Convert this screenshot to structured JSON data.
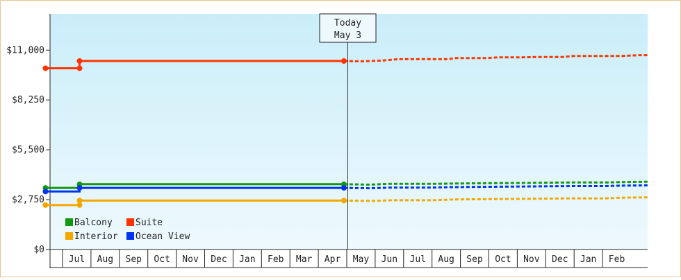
{
  "chart_data": {
    "type": "line",
    "y_ticks": [
      "$0",
      "$2,750",
      "$5,500",
      "$8,250",
      "$11,000"
    ],
    "y_tick_values": [
      0,
      2750,
      5500,
      8250,
      11000
    ],
    "ylim": [
      0,
      13000
    ],
    "x_months": [
      "Jul",
      "Aug",
      "Sep",
      "Oct",
      "Nov",
      "Dec",
      "Jan",
      "Feb",
      "Mar",
      "Apr",
      "May",
      "Jun",
      "Jul",
      "Aug",
      "Sep",
      "Oct",
      "Nov",
      "Dec",
      "Jan",
      "Feb"
    ],
    "today": {
      "title": "Today",
      "date": "May 3"
    },
    "legend": [
      {
        "name": "Balcony",
        "color": "#119911"
      },
      {
        "name": "Suite",
        "color": "#ff3300"
      },
      {
        "name": "Interior",
        "color": "#f5a700"
      },
      {
        "name": "Ocean View",
        "color": "#0033ee"
      }
    ],
    "series": [
      {
        "name": "Suite",
        "color": "#ff3300",
        "history": [
          [
            -1.1,
            10000
          ],
          [
            0.1,
            10000
          ],
          [
            0.1,
            10400
          ],
          [
            9.4,
            10400
          ]
        ],
        "forecast": [
          [
            9.4,
            10400
          ],
          [
            10.0,
            10380
          ],
          [
            10.7,
            10420
          ],
          [
            11.3,
            10500
          ],
          [
            12.2,
            10500
          ],
          [
            13.1,
            10500
          ],
          [
            13.3,
            10560
          ],
          [
            14.4,
            10560
          ],
          [
            14.8,
            10600
          ],
          [
            15.6,
            10600
          ],
          [
            16.3,
            10620
          ],
          [
            17.1,
            10620
          ],
          [
            17.5,
            10680
          ],
          [
            19.2,
            10680
          ],
          [
            19.8,
            10720
          ],
          [
            20.1,
            10720
          ]
        ]
      },
      {
        "name": "Balcony",
        "color": "#119911",
        "history": [
          [
            -1.1,
            3400
          ],
          [
            0.1,
            3400
          ],
          [
            0.1,
            3600
          ],
          [
            9.4,
            3600
          ]
        ],
        "forecast": [
          [
            9.4,
            3600
          ],
          [
            10.3,
            3580
          ],
          [
            11.0,
            3620
          ],
          [
            12.5,
            3620
          ],
          [
            13.3,
            3640
          ],
          [
            14.5,
            3660
          ],
          [
            16.1,
            3680
          ],
          [
            17.5,
            3700
          ],
          [
            18.7,
            3700
          ],
          [
            19.2,
            3720
          ],
          [
            20.1,
            3740
          ]
        ]
      },
      {
        "name": "Ocean View",
        "color": "#0033ee",
        "history": [
          [
            -1.1,
            3200
          ],
          [
            0.1,
            3200
          ],
          [
            0.1,
            3400
          ],
          [
            9.4,
            3400
          ]
        ],
        "forecast": [
          [
            9.4,
            3400
          ],
          [
            10.3,
            3380
          ],
          [
            11.1,
            3420
          ],
          [
            12.5,
            3420
          ],
          [
            13.2,
            3440
          ],
          [
            14.5,
            3460
          ],
          [
            16.0,
            3480
          ],
          [
            17.4,
            3500
          ],
          [
            18.6,
            3500
          ],
          [
            19.1,
            3520
          ],
          [
            20.1,
            3540
          ]
        ]
      },
      {
        "name": "Interior",
        "color": "#f5a700",
        "history": [
          [
            -1.1,
            2450
          ],
          [
            0.1,
            2450
          ],
          [
            0.1,
            2700
          ],
          [
            9.4,
            2700
          ]
        ],
        "forecast": [
          [
            9.4,
            2700
          ],
          [
            10.4,
            2680
          ],
          [
            11.1,
            2720
          ],
          [
            12.5,
            2720
          ],
          [
            13.3,
            2760
          ],
          [
            14.5,
            2780
          ],
          [
            16.0,
            2800
          ],
          [
            17.4,
            2820
          ],
          [
            18.6,
            2820
          ],
          [
            19.2,
            2860
          ],
          [
            20.1,
            2880
          ]
        ]
      }
    ],
    "markers": [
      {
        "series": "Suite",
        "points": [
          [
            -1.1,
            10000
          ],
          [
            0.1,
            10000
          ],
          [
            0.1,
            10400
          ],
          [
            9.4,
            10400
          ]
        ]
      },
      {
        "series": "Balcony",
        "points": [
          [
            -1.1,
            3400
          ],
          [
            0.1,
            3600
          ],
          [
            9.4,
            3600
          ]
        ]
      },
      {
        "series": "Ocean View",
        "points": [
          [
            -1.1,
            3200
          ],
          [
            0.1,
            3400
          ],
          [
            9.4,
            3400
          ]
        ]
      },
      {
        "series": "Interior",
        "points": [
          [
            -1.1,
            2450
          ],
          [
            0.1,
            2450
          ],
          [
            0.1,
            2700
          ],
          [
            9.4,
            2700
          ]
        ]
      }
    ]
  }
}
